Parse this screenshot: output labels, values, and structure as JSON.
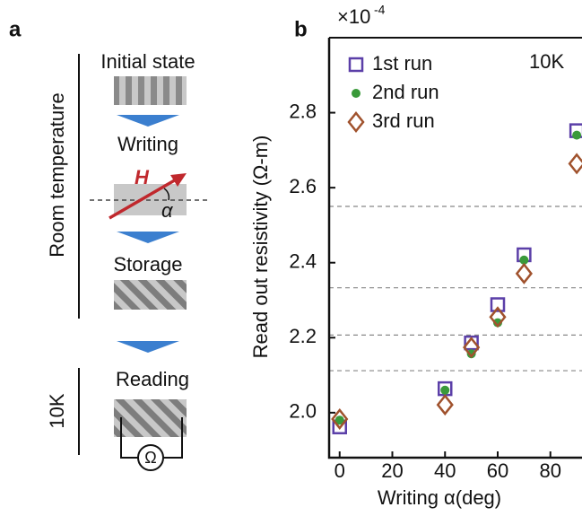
{
  "chart_data": {
    "type": "scatter",
    "panel_label": "b",
    "multiplier": "×10",
    "multiplier_exp": "-4",
    "annotation": "10K",
    "xlabel": "Writing α(deg)",
    "ylabel": "Read out resistivity (Ω-m)",
    "xlim": [
      -4,
      92
    ],
    "ylim": [
      1.88,
      3.0
    ],
    "xticks": [
      0,
      20,
      40,
      60,
      80
    ],
    "yticks": [
      {
        "value": 2.0,
        "label": "2.0"
      },
      2.2,
      2.4,
      2.6,
      2.8
    ],
    "reference_lines": [
      2.112,
      2.207,
      2.333,
      2.55
    ],
    "legend": "upper left",
    "series": [
      {
        "name": "1st run",
        "color": "#5b3fa8",
        "marker": "square",
        "x": [
          0,
          40,
          50,
          60,
          70,
          90
        ],
        "values": [
          1.962,
          2.064,
          2.186,
          2.288,
          2.421,
          2.752
        ]
      },
      {
        "name": "2nd run",
        "color": "#3a9a3a",
        "marker": "circle",
        "x": [
          0,
          40,
          50,
          60,
          70,
          90
        ],
        "values": [
          1.98,
          2.06,
          2.157,
          2.24,
          2.407,
          2.74
        ]
      },
      {
        "name": "3rd run",
        "color": "#a0522d",
        "marker": "diamond",
        "x": [
          0,
          40,
          50,
          60,
          70,
          90
        ],
        "values": [
          1.983,
          2.021,
          2.174,
          2.255,
          2.371,
          2.664
        ]
      }
    ]
  },
  "diagram": {
    "panel_label": "a",
    "room_temperature": "Room temperature",
    "initial_state": "Initial state",
    "writing": "Writing",
    "field": "H",
    "angle": "α",
    "storage": "Storage",
    "low_temp": "10K",
    "reading": "Reading",
    "ohm": "Ω"
  }
}
